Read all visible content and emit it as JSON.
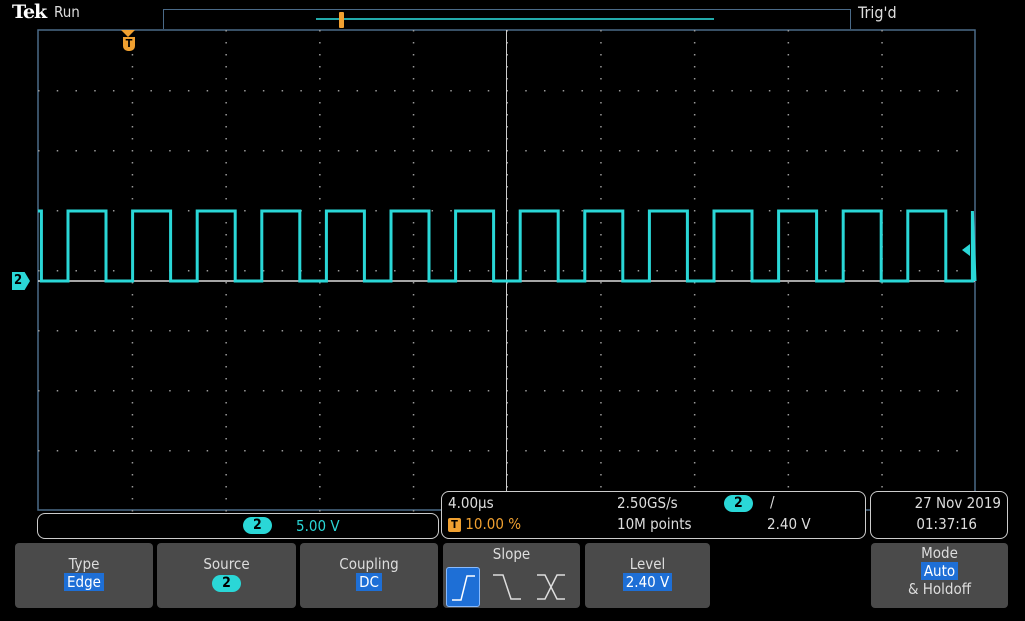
{
  "header": {
    "brand": "Tek",
    "run_state": "Run",
    "trigger_status": "Trig'd"
  },
  "channel_readout": {
    "channel": "2",
    "scale": "5.00 V"
  },
  "horizontal": {
    "time_per_div": "4.00µs",
    "trigger_position": "10.00 %",
    "sample_rate": "2.50GS/s",
    "record_length": "10M points"
  },
  "trigger_readout": {
    "channel": "2",
    "slope_symbol": "/",
    "level": "2.40 V"
  },
  "datetime": {
    "date": "27 Nov 2019",
    "time": "01:37:16"
  },
  "menu": {
    "type": {
      "label": "Type",
      "value": "Edge"
    },
    "source": {
      "label": "Source",
      "value": "2"
    },
    "coupling": {
      "label": "Coupling",
      "value": "DC"
    },
    "slope": {
      "label": "Slope",
      "selected": "rising"
    },
    "level": {
      "label": "Level",
      "value": "2.40 V"
    },
    "mode": {
      "label": "Mode",
      "value": "Auto",
      "extra": "& Holdoff"
    }
  },
  "markers": {
    "trigger": "T",
    "channel": "2"
  },
  "colors": {
    "channel2": "#2ad7d7",
    "trigger": "#f0a030",
    "highlight": "#1e6fd6"
  }
}
